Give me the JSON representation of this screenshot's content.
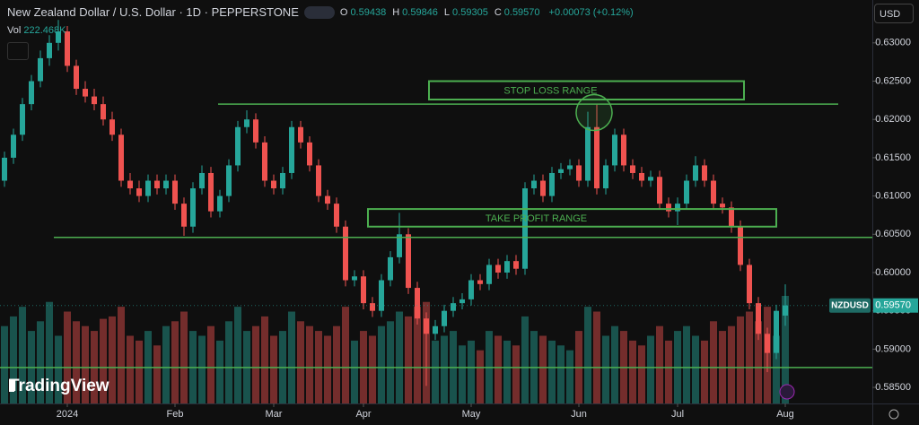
{
  "header": {
    "symbol_title": "New Zealand Dollar / U.S. Dollar · 1D · PEPPERSTONE",
    "ohlc": [
      {
        "key": "O",
        "text": "0.59438"
      },
      {
        "key": "H",
        "text": "0.59846"
      },
      {
        "key": "L",
        "text": "0.59305"
      },
      {
        "key": "C",
        "text": "0.59570"
      }
    ],
    "change": "+0.00073 (+0.12%)",
    "volume_key": "Vol",
    "volume_text": "222.468K",
    "currency": "USD",
    "brand": "TradingView"
  },
  "chart_data": {
    "type": "candlestick",
    "ohlc": [
      [
        0.612,
        0.6158,
        0.6112,
        0.615
      ],
      [
        0.615,
        0.6188,
        0.6142,
        0.618
      ],
      [
        0.618,
        0.6228,
        0.6172,
        0.622
      ],
      [
        0.622,
        0.6258,
        0.6212,
        0.625
      ],
      [
        0.625,
        0.629,
        0.6242,
        0.628
      ],
      [
        0.628,
        0.631,
        0.627,
        0.63
      ],
      [
        0.63,
        0.633,
        0.629,
        0.6315
      ],
      [
        0.6315,
        0.6322,
        0.6262,
        0.627
      ],
      [
        0.627,
        0.6278,
        0.6232,
        0.624
      ],
      [
        0.624,
        0.625,
        0.6222,
        0.623
      ],
      [
        0.623,
        0.624,
        0.6212,
        0.622
      ],
      [
        0.622,
        0.623,
        0.6192,
        0.62
      ],
      [
        0.62,
        0.621,
        0.6172,
        0.618
      ],
      [
        0.618,
        0.6188,
        0.6112,
        0.612
      ],
      [
        0.612,
        0.613,
        0.6102,
        0.611
      ],
      [
        0.611,
        0.612,
        0.6092,
        0.61
      ],
      [
        0.61,
        0.6128,
        0.6092,
        0.612
      ],
      [
        0.612,
        0.6128,
        0.6102,
        0.611
      ],
      [
        0.611,
        0.6128,
        0.6102,
        0.612
      ],
      [
        0.612,
        0.6128,
        0.6082,
        0.609
      ],
      [
        0.609,
        0.6098,
        0.6048,
        0.606
      ],
      [
        0.606,
        0.6118,
        0.6052,
        0.611
      ],
      [
        0.611,
        0.614,
        0.6102,
        0.613
      ],
      [
        0.613,
        0.6138,
        0.6072,
        0.608
      ],
      [
        0.608,
        0.6108,
        0.6072,
        0.61
      ],
      [
        0.61,
        0.6148,
        0.6092,
        0.614
      ],
      [
        0.614,
        0.6198,
        0.6132,
        0.619
      ],
      [
        0.619,
        0.6212,
        0.6182,
        0.62
      ],
      [
        0.62,
        0.6208,
        0.6162,
        0.617
      ],
      [
        0.617,
        0.6178,
        0.6112,
        0.612
      ],
      [
        0.612,
        0.6128,
        0.6102,
        0.611
      ],
      [
        0.611,
        0.6138,
        0.6102,
        0.613
      ],
      [
        0.613,
        0.6198,
        0.6122,
        0.619
      ],
      [
        0.619,
        0.6198,
        0.6162,
        0.617
      ],
      [
        0.617,
        0.6178,
        0.6132,
        0.614
      ],
      [
        0.614,
        0.6148,
        0.6092,
        0.61
      ],
      [
        0.61,
        0.6108,
        0.6082,
        0.609
      ],
      [
        0.609,
        0.6098,
        0.6052,
        0.606
      ],
      [
        0.606,
        0.6068,
        0.5982,
        0.599
      ],
      [
        0.599,
        0.6003,
        0.5982,
        0.5995
      ],
      [
        0.5995,
        0.6003,
        0.5952,
        0.596
      ],
      [
        0.596,
        0.5968,
        0.5942,
        0.595
      ],
      [
        0.595,
        0.5998,
        0.5942,
        0.599
      ],
      [
        0.599,
        0.6028,
        0.5982,
        0.602
      ],
      [
        0.602,
        0.6078,
        0.6012,
        0.605
      ],
      [
        0.605,
        0.6058,
        0.5972,
        0.598
      ],
      [
        0.598,
        0.5988,
        0.5932,
        0.594
      ],
      [
        0.594,
        0.5948,
        0.5852,
        0.592
      ],
      [
        0.592,
        0.5938,
        0.5912,
        0.593
      ],
      [
        0.593,
        0.5958,
        0.5922,
        0.595
      ],
      [
        0.595,
        0.5968,
        0.5942,
        0.596
      ],
      [
        0.596,
        0.5973,
        0.5952,
        0.5965
      ],
      [
        0.5965,
        0.5998,
        0.5957,
        0.599
      ],
      [
        0.599,
        0.5998,
        0.5977,
        0.5985
      ],
      [
        0.5985,
        0.6018,
        0.5977,
        0.601
      ],
      [
        0.601,
        0.6018,
        0.5992,
        0.6
      ],
      [
        0.6,
        0.6023,
        0.5992,
        0.6015
      ],
      [
        0.6015,
        0.6023,
        0.5997,
        0.6005
      ],
      [
        0.6005,
        0.6118,
        0.5997,
        0.611
      ],
      [
        0.611,
        0.6128,
        0.6102,
        0.612
      ],
      [
        0.612,
        0.6128,
        0.6092,
        0.61
      ],
      [
        0.61,
        0.6138,
        0.6092,
        0.613
      ],
      [
        0.613,
        0.6143,
        0.6122,
        0.6135
      ],
      [
        0.6135,
        0.6148,
        0.6127,
        0.614
      ],
      [
        0.614,
        0.6148,
        0.6112,
        0.612
      ],
      [
        0.612,
        0.621,
        0.6112,
        0.619
      ],
      [
        0.619,
        0.622,
        0.6102,
        0.611
      ],
      [
        0.611,
        0.6148,
        0.6102,
        0.614
      ],
      [
        0.614,
        0.6188,
        0.6132,
        0.618
      ],
      [
        0.618,
        0.6188,
        0.6132,
        0.614
      ],
      [
        0.614,
        0.6148,
        0.6122,
        0.613
      ],
      [
        0.613,
        0.6138,
        0.6112,
        0.612
      ],
      [
        0.612,
        0.6133,
        0.6112,
        0.6125
      ],
      [
        0.6125,
        0.6133,
        0.6082,
        0.609
      ],
      [
        0.609,
        0.6098,
        0.6072,
        0.608
      ],
      [
        0.608,
        0.6098,
        0.6062,
        0.609
      ],
      [
        0.609,
        0.6128,
        0.6082,
        0.612
      ],
      [
        0.612,
        0.6152,
        0.6112,
        0.614
      ],
      [
        0.614,
        0.6148,
        0.6112,
        0.612
      ],
      [
        0.612,
        0.6128,
        0.6082,
        0.609
      ],
      [
        0.609,
        0.6098,
        0.6077,
        0.6085
      ],
      [
        0.6085,
        0.6093,
        0.6052,
        0.606
      ],
      [
        0.606,
        0.6068,
        0.6002,
        0.601
      ],
      [
        0.601,
        0.6018,
        0.5952,
        0.596
      ],
      [
        0.596,
        0.5968,
        0.5912,
        0.592
      ],
      [
        0.592,
        0.5928,
        0.587,
        0.5895
      ],
      [
        0.5895,
        0.5958,
        0.5887,
        0.595
      ],
      [
        0.59438,
        0.59846,
        0.59305,
        0.5957
      ]
    ],
    "volume": [
      160,
      180,
      200,
      150,
      170,
      210,
      140,
      190,
      170,
      160,
      150,
      175,
      180,
      200,
      140,
      130,
      150,
      120,
      160,
      170,
      190,
      150,
      140,
      160,
      130,
      170,
      200,
      150,
      160,
      180,
      140,
      150,
      190,
      170,
      160,
      150,
      140,
      160,
      200,
      130,
      150,
      140,
      160,
      170,
      190,
      180,
      200,
      210,
      130,
      140,
      150,
      120,
      130,
      110,
      150,
      140,
      130,
      120,
      180,
      150,
      140,
      130,
      120,
      110,
      150,
      200,
      190,
      140,
      160,
      150,
      130,
      120,
      140,
      160,
      130,
      150,
      160,
      140,
      130,
      170,
      150,
      160,
      180,
      190,
      170,
      200,
      140,
      222.468
    ],
    "up_color": "#26a69a",
    "down_color": "#ef5350",
    "xlim": [
      -0.5,
      96.7
    ],
    "xticks": [
      {
        "value": 7,
        "label": "2024"
      },
      {
        "value": 19,
        "label": "Feb"
      },
      {
        "value": 30,
        "label": "Mar"
      },
      {
        "value": 40,
        "label": "Apr"
      },
      {
        "value": 52,
        "label": "May"
      },
      {
        "value": 64,
        "label": "Jun"
      },
      {
        "value": 75,
        "label": "Jul"
      },
      {
        "value": 87,
        "label": "Aug"
      }
    ],
    "ylim": [
      0.5829,
      0.6356
    ],
    "yticks": [
      {
        "value": 0.585,
        "label": "0.58500"
      },
      {
        "value": 0.59,
        "label": "0.59000"
      },
      {
        "value": 0.595,
        "label": "0.59500"
      },
      {
        "value": 0.6,
        "label": "0.60000"
      },
      {
        "value": 0.605,
        "label": "0.60500"
      },
      {
        "value": 0.61,
        "label": "0.61000"
      },
      {
        "value": 0.615,
        "label": "0.61500"
      },
      {
        "value": 0.62,
        "label": "0.62000"
      },
      {
        "value": 0.625,
        "label": "0.62500"
      },
      {
        "value": 0.63,
        "label": "0.63000"
      }
    ],
    "last_price": {
      "symbol": "NZDUSD",
      "value": 0.5957,
      "label": "0.59570"
    },
    "lines": [
      {
        "value": 0.622,
        "from": 23.8,
        "to": 92.9
      },
      {
        "value": 0.6046,
        "from": 5.5,
        "to": 96.7
      },
      {
        "value": 0.5876,
        "from": -0.5,
        "to": 96.7
      }
    ],
    "boxes": [
      {
        "label": "STOP LOSS RANGE",
        "from": 47.3,
        "to": 82.4,
        "low": 0.6226,
        "high": 0.625
      },
      {
        "label": "TAKE PROFIT RANGE",
        "from": 40.5,
        "to": 86,
        "low": 0.606,
        "high": 0.6083
      }
    ],
    "circle": {
      "x": 65.7,
      "value": 0.6209
    },
    "annotation_color": "#4caf50"
  }
}
